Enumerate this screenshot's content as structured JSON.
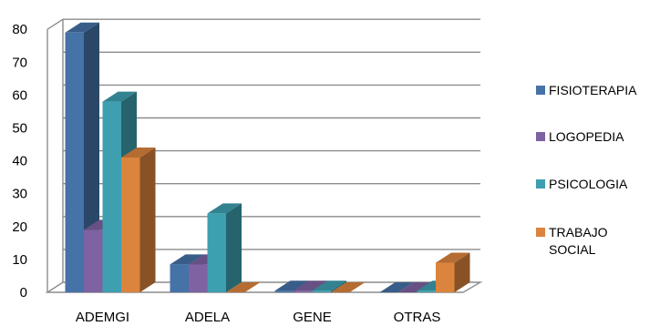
{
  "chart_data": {
    "type": "bar",
    "categories": [
      "ADEMGI",
      "ADELA",
      "GENE",
      "OTRAS"
    ],
    "series": [
      {
        "name": "FISIOTERAPIA",
        "values": [
          79,
          8.5,
          0.5,
          0
        ]
      },
      {
        "name": "LOGOPEDIA",
        "values": [
          19,
          8.5,
          0.5,
          0
        ]
      },
      {
        "name": "PSICOLOGIA",
        "values": [
          58,
          24,
          0.5,
          0.5
        ]
      },
      {
        "name": "TRABAJO SOCIAL",
        "values": [
          41,
          0,
          0,
          9
        ]
      }
    ],
    "y_ticks": [
      "0",
      "10",
      "20",
      "30",
      "40",
      "50",
      "60",
      "70",
      "80"
    ],
    "ylim": [
      0,
      80
    ],
    "grid": true,
    "three_d": true,
    "legend_position": "right",
    "colors": {
      "FISIOTERAPIA": "#4572A7",
      "LOGOPEDIA": "#7E62A1",
      "PSICOLOGIA": "#3D9FB0",
      "TRABAJO SOCIAL": "#DB843D"
    }
  }
}
